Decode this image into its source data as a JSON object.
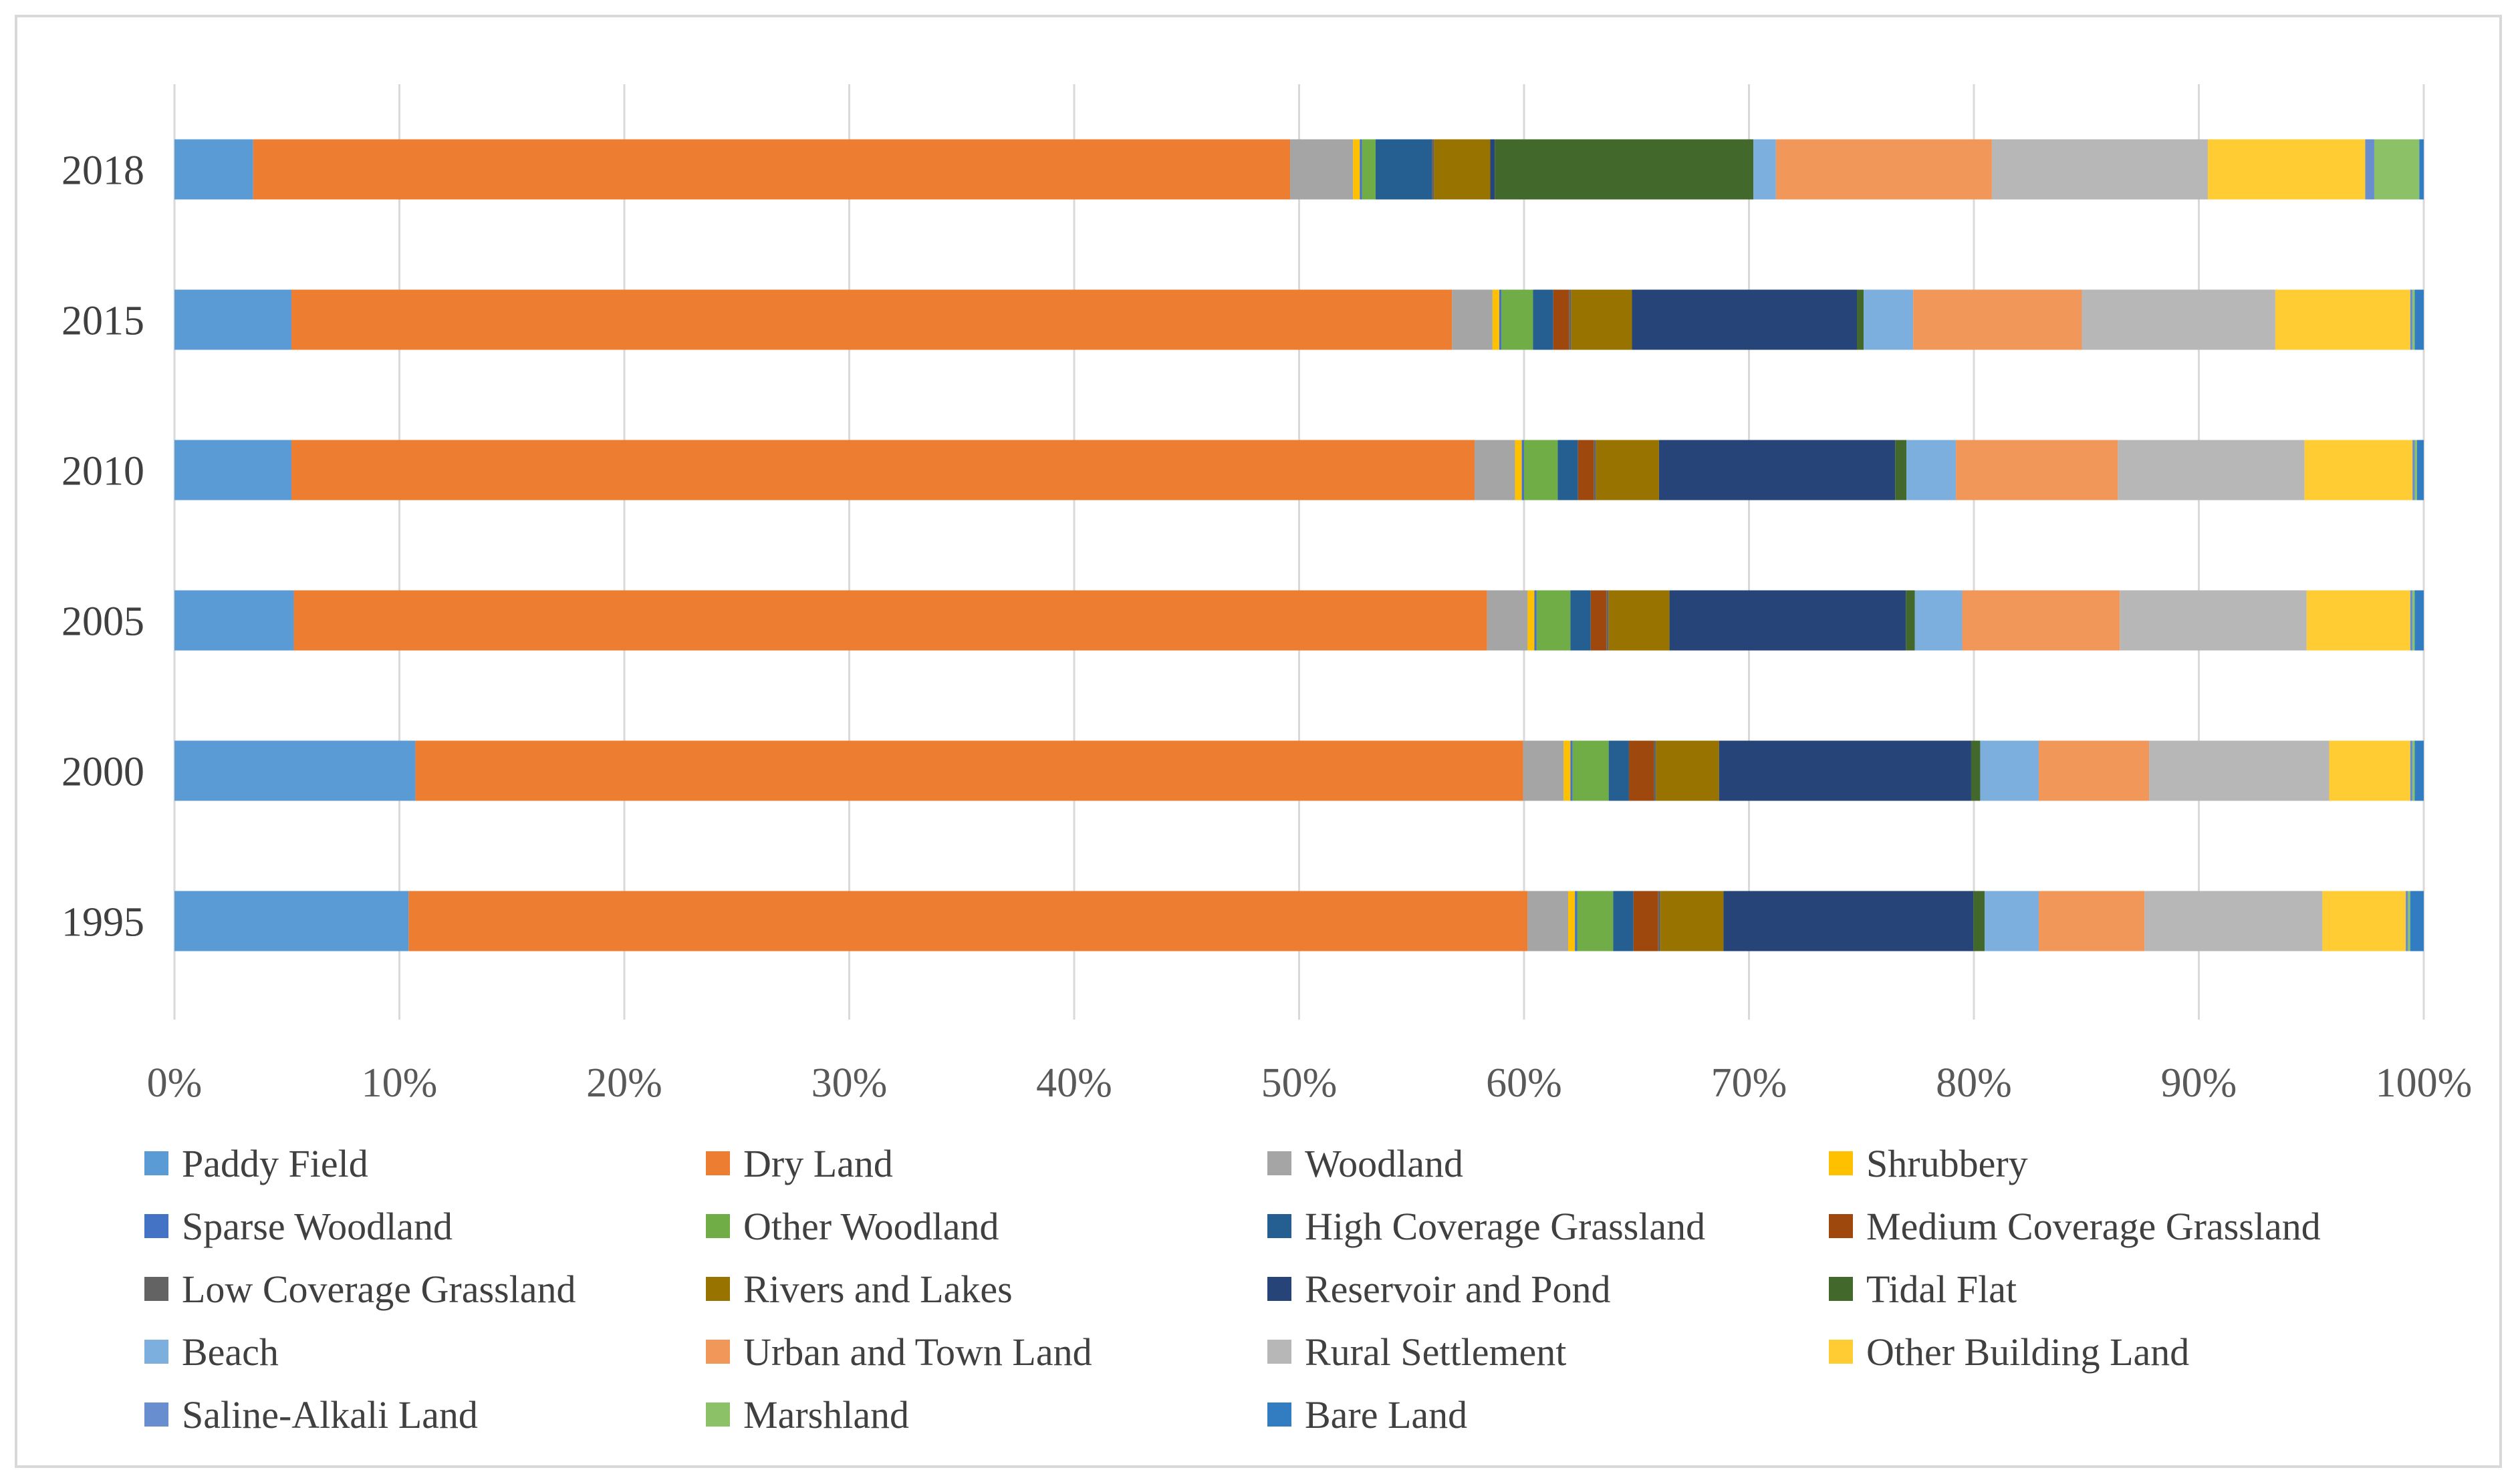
{
  "chart_data": {
    "type": "bar",
    "orientation": "horizontal",
    "stacking": "percent",
    "title": "",
    "xlabel": "",
    "ylabel": "",
    "xlim": [
      0,
      100
    ],
    "x_ticks": [
      "0%",
      "10%",
      "20%",
      "30%",
      "40%",
      "50%",
      "60%",
      "70%",
      "80%",
      "90%",
      "100%"
    ],
    "grid": true,
    "legend_position": "bottom",
    "categories": [
      "2018",
      "2015",
      "2010",
      "2005",
      "2000",
      "1995"
    ],
    "series": [
      {
        "name": "Paddy Field",
        "color": "#5b9bd5",
        "values": [
          3.5,
          5.2,
          5.2,
          5.3,
          10.7,
          10.4
        ]
      },
      {
        "name": "Dry Land",
        "color": "#ed7d31",
        "values": [
          46.1,
          51.6,
          52.6,
          53.0,
          49.2,
          49.7
        ]
      },
      {
        "name": "Woodland",
        "color": "#a5a5a5",
        "values": [
          2.8,
          1.8,
          1.8,
          1.8,
          1.8,
          1.8
        ]
      },
      {
        "name": "Shrubbery",
        "color": "#ffc000",
        "values": [
          0.3,
          0.3,
          0.3,
          0.3,
          0.3,
          0.3
        ]
      },
      {
        "name": "Sparse Woodland",
        "color": "#4472c4",
        "values": [
          0.1,
          0.1,
          0.1,
          0.1,
          0.1,
          0.1
        ]
      },
      {
        "name": "Other Woodland",
        "color": "#70ad47",
        "values": [
          0.6,
          1.4,
          1.5,
          1.5,
          1.6,
          1.6
        ]
      },
      {
        "name": "High Coverage Grassland",
        "color": "#255e91",
        "values": [
          2.5,
          0.9,
          0.9,
          0.9,
          0.9,
          0.9
        ]
      },
      {
        "name": "Medium Coverage Grassland",
        "color": "#9e480e",
        "values": [
          0.0,
          0.7,
          0.7,
          0.7,
          1.1,
          1.1
        ]
      },
      {
        "name": "Low Coverage Grassland",
        "color": "#636363",
        "values": [
          0.1,
          0.1,
          0.1,
          0.1,
          0.1,
          0.1
        ]
      },
      {
        "name": "Rivers and Lakes",
        "color": "#997300",
        "values": [
          2.5,
          2.7,
          2.8,
          2.7,
          2.8,
          2.8
        ]
      },
      {
        "name": "Reservoir and Pond",
        "color": "#264478",
        "values": [
          0.2,
          10.0,
          10.5,
          10.5,
          11.2,
          11.1
        ]
      },
      {
        "name": "Tidal Flat",
        "color": "#43682b",
        "values": [
          11.5,
          0.3,
          0.5,
          0.4,
          0.4,
          0.5
        ]
      },
      {
        "name": "Beach",
        "color": "#7cafdd",
        "values": [
          1.0,
          2.2,
          2.2,
          2.1,
          2.6,
          2.4
        ]
      },
      {
        "name": "Urban and Town Land",
        "color": "#f1975a",
        "values": [
          9.6,
          7.5,
          7.2,
          7.0,
          4.9,
          4.7
        ]
      },
      {
        "name": "Rural Settlement",
        "color": "#b7b7b7",
        "values": [
          9.6,
          8.6,
          8.3,
          8.3,
          8.0,
          7.9
        ]
      },
      {
        "name": "Other Building Land",
        "color": "#ffcd33",
        "values": [
          7.0,
          6.0,
          4.8,
          4.6,
          3.6,
          3.7
        ]
      },
      {
        "name": "Saline-Alkali Land",
        "color": "#698ed0",
        "values": [
          0.4,
          0.1,
          0.1,
          0.1,
          0.1,
          0.1
        ]
      },
      {
        "name": "Marshland",
        "color": "#8cc168",
        "values": [
          2.0,
          0.1,
          0.1,
          0.1,
          0.1,
          0.1
        ]
      },
      {
        "name": "Bare Land",
        "color": "#327dc2",
        "values": [
          0.2,
          0.4,
          0.3,
          0.4,
          0.4,
          0.6
        ]
      }
    ]
  }
}
